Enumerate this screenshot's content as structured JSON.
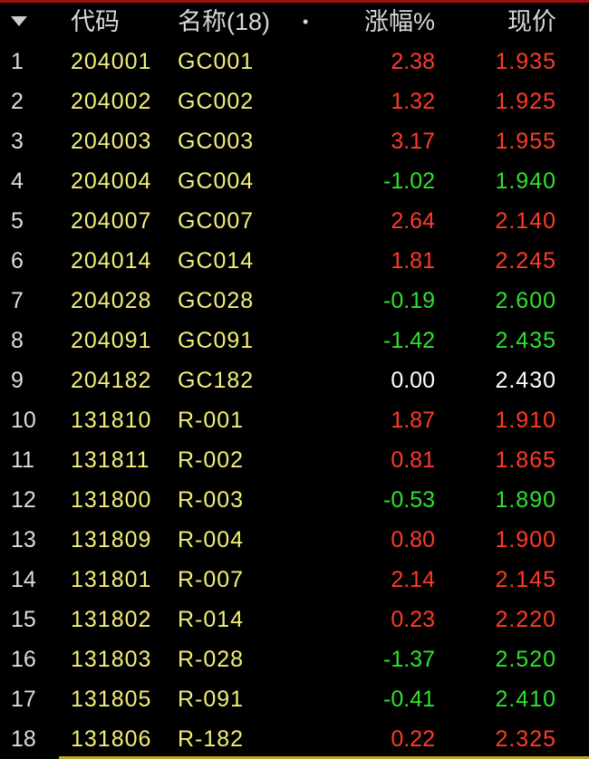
{
  "header": {
    "code": "代码",
    "name": "名称(18)",
    "dot": "•",
    "change_pct": "涨幅%",
    "price": "现价"
  },
  "colors": {
    "up": "#ff3a2a",
    "down": "#30e030",
    "flat": "#ffffff",
    "code": "#f2ee78",
    "top_bar": "#a01010"
  },
  "rows": [
    {
      "idx": "1",
      "code": "204001",
      "name": "GC001",
      "pct": "2.38",
      "price": "1.935",
      "dir": "up"
    },
    {
      "idx": "2",
      "code": "204002",
      "name": "GC002",
      "pct": "1.32",
      "price": "1.925",
      "dir": "up"
    },
    {
      "idx": "3",
      "code": "204003",
      "name": "GC003",
      "pct": "3.17",
      "price": "1.955",
      "dir": "up"
    },
    {
      "idx": "4",
      "code": "204004",
      "name": "GC004",
      "pct": "-1.02",
      "price": "1.940",
      "dir": "down"
    },
    {
      "idx": "5",
      "code": "204007",
      "name": "GC007",
      "pct": "2.64",
      "price": "2.140",
      "dir": "up"
    },
    {
      "idx": "6",
      "code": "204014",
      "name": "GC014",
      "pct": "1.81",
      "price": "2.245",
      "dir": "up"
    },
    {
      "idx": "7",
      "code": "204028",
      "name": "GC028",
      "pct": "-0.19",
      "price": "2.600",
      "dir": "down"
    },
    {
      "idx": "8",
      "code": "204091",
      "name": "GC091",
      "pct": "-1.42",
      "price": "2.435",
      "dir": "down"
    },
    {
      "idx": "9",
      "code": "204182",
      "name": "GC182",
      "pct": "0.00",
      "price": "2.430",
      "dir": "flat"
    },
    {
      "idx": "10",
      "code": "131810",
      "name": "R-001",
      "pct": "1.87",
      "price": "1.910",
      "dir": "up"
    },
    {
      "idx": "11",
      "code": "131811",
      "name": "R-002",
      "pct": "0.81",
      "price": "1.865",
      "dir": "up"
    },
    {
      "idx": "12",
      "code": "131800",
      "name": "R-003",
      "pct": "-0.53",
      "price": "1.890",
      "dir": "down"
    },
    {
      "idx": "13",
      "code": "131809",
      "name": "R-004",
      "pct": "0.80",
      "price": "1.900",
      "dir": "up"
    },
    {
      "idx": "14",
      "code": "131801",
      "name": "R-007",
      "pct": "2.14",
      "price": "2.145",
      "dir": "up"
    },
    {
      "idx": "15",
      "code": "131802",
      "name": "R-014",
      "pct": "0.23",
      "price": "2.220",
      "dir": "up"
    },
    {
      "idx": "16",
      "code": "131803",
      "name": "R-028",
      "pct": "-1.37",
      "price": "2.520",
      "dir": "down"
    },
    {
      "idx": "17",
      "code": "131805",
      "name": "R-091",
      "pct": "-0.41",
      "price": "2.410",
      "dir": "down"
    },
    {
      "idx": "18",
      "code": "131806",
      "name": "R-182",
      "pct": "0.22",
      "price": "2.325",
      "dir": "up"
    }
  ]
}
